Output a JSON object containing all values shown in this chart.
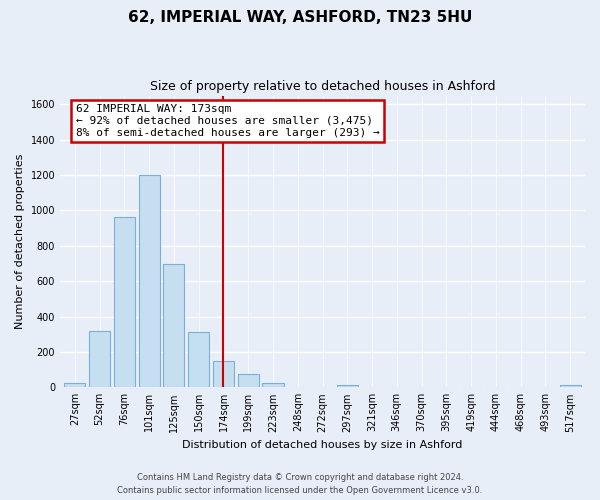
{
  "title": "62, IMPERIAL WAY, ASHFORD, TN23 5HU",
  "subtitle": "Size of property relative to detached houses in Ashford",
  "xlabel": "Distribution of detached houses by size in Ashford",
  "ylabel": "Number of detached properties",
  "bar_labels": [
    "27sqm",
    "52sqm",
    "76sqm",
    "101sqm",
    "125sqm",
    "150sqm",
    "174sqm",
    "199sqm",
    "223sqm",
    "248sqm",
    "272sqm",
    "297sqm",
    "321sqm",
    "346sqm",
    "370sqm",
    "395sqm",
    "419sqm",
    "444sqm",
    "468sqm",
    "493sqm",
    "517sqm"
  ],
  "bar_values": [
    25,
    320,
    965,
    1200,
    700,
    315,
    150,
    75,
    25,
    0,
    0,
    15,
    0,
    0,
    0,
    0,
    0,
    0,
    0,
    0,
    15
  ],
  "bar_color": "#c5dff0",
  "bar_edge_color": "#7ab0d4",
  "property_bar_index": 6,
  "annotation_title": "62 IMPERIAL WAY: 173sqm",
  "annotation_line1": "← 92% of detached houses are smaller (3,475)",
  "annotation_line2": "8% of semi-detached houses are larger (293) →",
  "annotation_box_color": "#ffffff",
  "annotation_box_edge": "#cc0000",
  "vline_color": "#cc0000",
  "ylim": [
    0,
    1650
  ],
  "yticks": [
    0,
    200,
    400,
    600,
    800,
    1000,
    1200,
    1400,
    1600
  ],
  "footer1": "Contains HM Land Registry data © Crown copyright and database right 2024.",
  "footer2": "Contains public sector information licensed under the Open Government Licence v3.0.",
  "bg_color": "#e8eef8",
  "plot_bg_color": "#e8eef8",
  "grid_color": "#ffffff",
  "title_fontsize": 11,
  "subtitle_fontsize": 9,
  "tick_fontsize": 7,
  "ylabel_fontsize": 8,
  "xlabel_fontsize": 8,
  "annotation_fontsize": 8,
  "footer_fontsize": 6
}
